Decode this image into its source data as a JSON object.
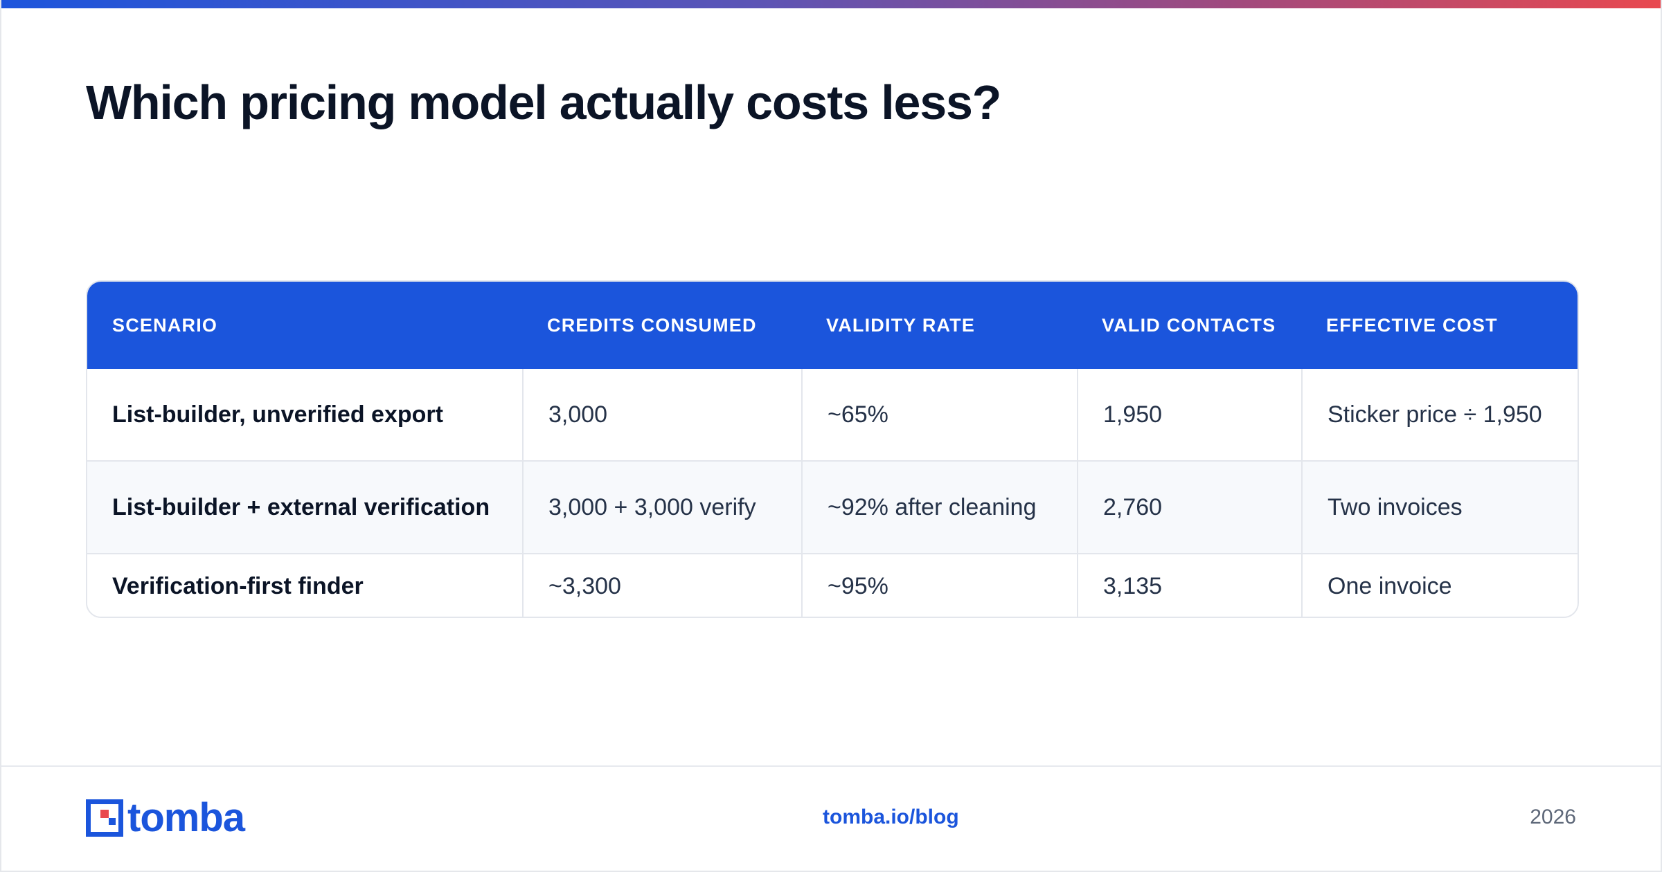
{
  "title": "Which pricing model actually costs less?",
  "table": {
    "columns": [
      "SCENARIO",
      "CREDITS CONSUMED",
      "VALIDITY RATE",
      "VALID CONTACTS",
      "EFFECTIVE COST"
    ],
    "rows": [
      {
        "scenario": "List-builder, unverified export",
        "credits": "3,000",
        "validity": "~65%",
        "valid_contacts": "1,950",
        "effective_cost": "Sticker price ÷ 1,950"
      },
      {
        "scenario": "List-builder + external verification",
        "credits": "3,000 + 3,000 verify",
        "validity": "~92% after cleaning",
        "valid_contacts": "2,760",
        "effective_cost": "Two invoices"
      },
      {
        "scenario": "Verification-first finder",
        "credits": "~3,300",
        "validity": "~95%",
        "valid_contacts": "3,135",
        "effective_cost": "One invoice"
      }
    ]
  },
  "footer": {
    "logo_text": "tomba",
    "link": "tomba.io/blog",
    "year": "2026"
  },
  "colors": {
    "brand_blue": "#1b55dc",
    "logo_accent_red": "#e9484f",
    "header_text": "#ffffff"
  }
}
